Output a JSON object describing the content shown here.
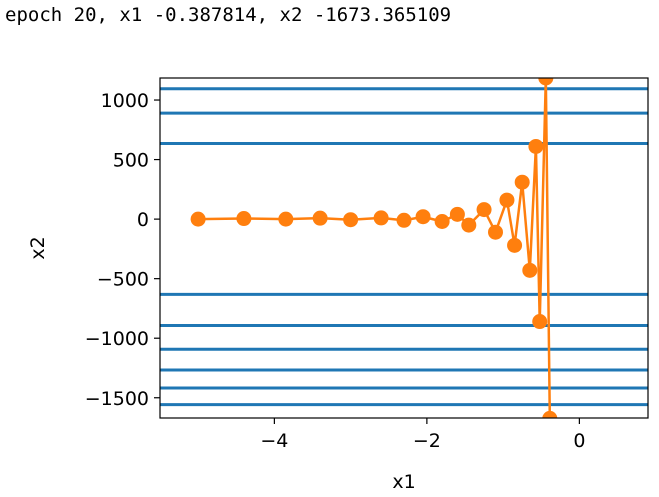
{
  "output": {
    "text": "epoch 20, x1 -0.387814, x2 -1673.365109"
  },
  "chart_data": {
    "type": "line",
    "xlabel": "x1",
    "ylabel": "x2",
    "xlim": [
      -5.5,
      0.9
    ],
    "ylim": [
      -1670,
      1185
    ],
    "x_ticks": [
      -4,
      -2,
      0
    ],
    "x_tick_labels": [
      "−4",
      "−2",
      "0"
    ],
    "y_ticks": [
      -1500,
      -1000,
      -500,
      0,
      500,
      1000
    ],
    "y_tick_labels": [
      "−1500",
      "−1000",
      "−500",
      "0",
      "500",
      "1000"
    ],
    "grid": false,
    "contour_color": "#1f77b4",
    "trajectory_color": "#ff7f0e",
    "contour_levels": [
      1095,
      890,
      635,
      -632,
      -893,
      -1093,
      -1267,
      -1418,
      -1558
    ],
    "trajectory": {
      "x": [
        -5.0,
        -4.4,
        -3.85,
        -3.4,
        -3.0,
        -2.6,
        -2.3,
        -2.05,
        -1.8,
        -1.6,
        -1.45,
        -1.25,
        -1.1,
        -0.95,
        -0.85,
        -0.75,
        -0.65,
        -0.57,
        -0.52,
        -0.44,
        -0.387814
      ],
      "y": [
        0,
        5,
        0,
        8,
        -5,
        10,
        -10,
        20,
        -20,
        40,
        -50,
        80,
        -110,
        160,
        -220,
        310,
        -430,
        610,
        -860,
        1185,
        -1673.365109
      ]
    }
  }
}
